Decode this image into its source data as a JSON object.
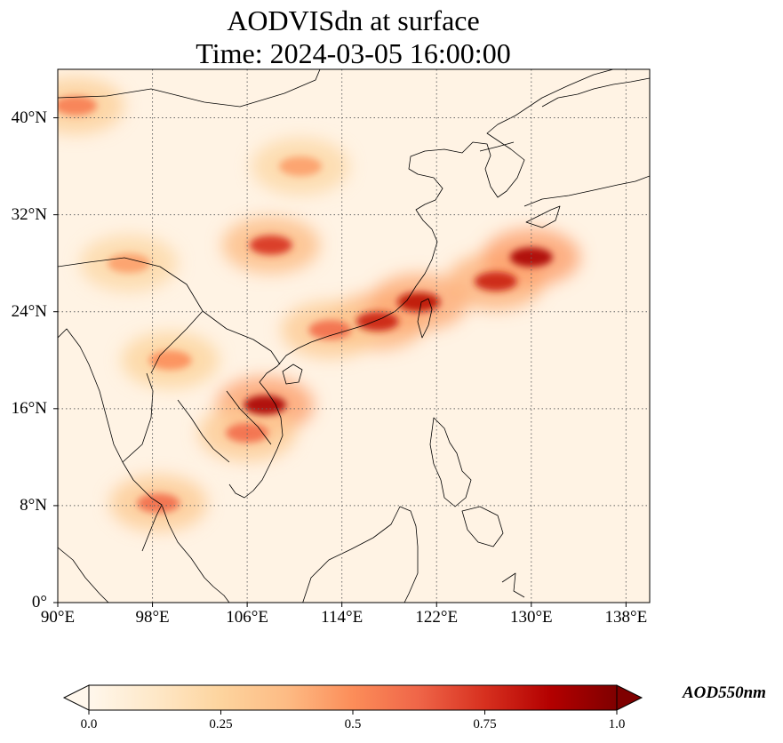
{
  "title": {
    "line1": "AODVISdn at surface",
    "line2": "Time: 2024-03-05 16:00:00"
  },
  "map": {
    "extent_lon": [
      90,
      140
    ],
    "extent_lat": [
      0,
      44
    ],
    "lat_ticks": [
      {
        "value": 0,
        "label": "0°"
      },
      {
        "value": 8,
        "label": "8°N"
      },
      {
        "value": 16,
        "label": "16°N"
      },
      {
        "value": 24,
        "label": "24°N"
      },
      {
        "value": 32,
        "label": "32°N"
      },
      {
        "value": 40,
        "label": "40°N"
      }
    ],
    "lon_ticks": [
      {
        "value": 90,
        "label": "90°E"
      },
      {
        "value": 98,
        "label": "98°E"
      },
      {
        "value": 106,
        "label": "106°E"
      },
      {
        "value": 114,
        "label": "114°E"
      },
      {
        "value": 122,
        "label": "122°E"
      },
      {
        "value": 130,
        "label": "130°E"
      },
      {
        "value": 138,
        "label": "138°E"
      }
    ],
    "gridlines": "dotted",
    "aod_plumes": [
      {
        "lon": 108,
        "lat": 29.5,
        "value": 0.75
      },
      {
        "lon": 110.5,
        "lat": 36,
        "value": 0.45
      },
      {
        "lon": 117,
        "lat": 23.2,
        "value": 0.8
      },
      {
        "lon": 120.5,
        "lat": 24.8,
        "value": 0.85
      },
      {
        "lon": 127,
        "lat": 26.5,
        "value": 0.8
      },
      {
        "lon": 130,
        "lat": 28.5,
        "value": 0.9
      },
      {
        "lon": 107.5,
        "lat": 16.3,
        "value": 0.9
      },
      {
        "lon": 106,
        "lat": 14,
        "value": 0.6
      },
      {
        "lon": 98.5,
        "lat": 8.2,
        "value": 0.6
      },
      {
        "lon": 99.5,
        "lat": 20,
        "value": 0.5
      },
      {
        "lon": 91.5,
        "lat": 41,
        "value": 0.55
      },
      {
        "lon": 96,
        "lat": 28,
        "value": 0.45
      },
      {
        "lon": 113,
        "lat": 22.5,
        "value": 0.6
      }
    ]
  },
  "colorbar": {
    "title": "AOD550nm",
    "ticks": [
      "0.0",
      "0.25",
      "0.5",
      "0.75",
      "1.0"
    ],
    "range": [
      0,
      1
    ],
    "colormap": "OrRd",
    "extend": "both",
    "colors": [
      "#fff7ec",
      "#fee8c8",
      "#fdd49e",
      "#fdbb84",
      "#fc8d59",
      "#ef6548",
      "#d7301f",
      "#b30000",
      "#7f0000"
    ]
  }
}
